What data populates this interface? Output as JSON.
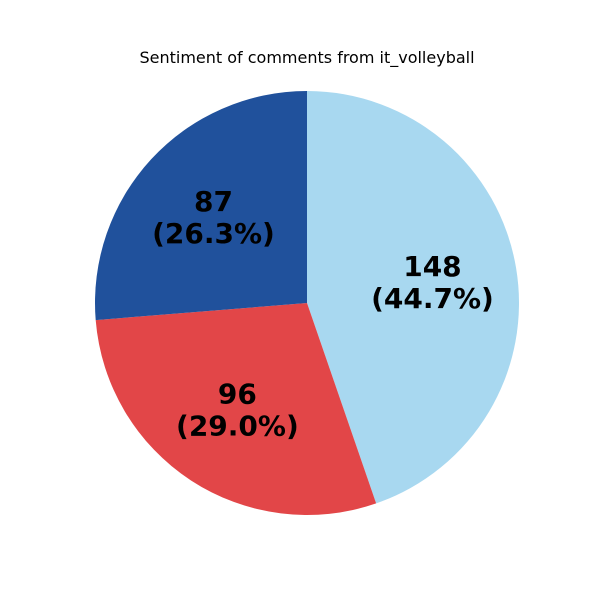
{
  "chart_data": {
    "type": "pie",
    "title": "Sentiment of comments from it_volleyball",
    "slices": [
      {
        "value": 148,
        "label": "148\n(44.7%)",
        "color": "#a8d8f0"
      },
      {
        "value": 96,
        "label": "96\n(29.0%)",
        "color": "#e24648"
      },
      {
        "value": 87,
        "label": "87\n(26.3%)",
        "color": "#20519c"
      }
    ],
    "start_angle_deg": 90,
    "direction": "clockwise",
    "legend": "none"
  }
}
